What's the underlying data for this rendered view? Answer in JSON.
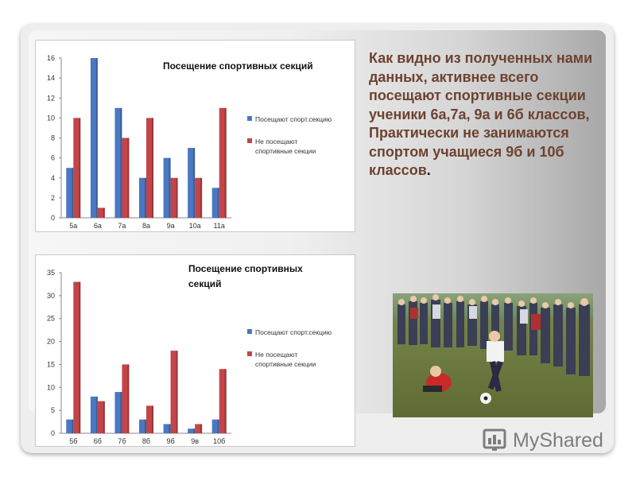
{
  "slide": {
    "description": "Как видно из полученных нами данных, активнее всего посещают спортивные секции ученики 6а,7а, 9а и 6б классов, Практически не занимаются спортом учащиеся 9б и 10б классов",
    "description_end": "."
  },
  "logo": {
    "text": "MyShared",
    "icon": "myshared-logo-icon"
  },
  "photo": {
    "subject": "children playing football photo"
  },
  "colors": {
    "series1": "#4a78c2",
    "series2": "#c3454a",
    "text": "#6e4230"
  },
  "chart_data": [
    {
      "type": "bar",
      "title": "Посещение спортивных секций",
      "categories": [
        "5а",
        "6а",
        "7а",
        "8а",
        "9а",
        "10а",
        "11а"
      ],
      "series": [
        {
          "name": "Посещают спорт.секцию",
          "values": [
            5,
            16,
            11,
            4,
            6,
            7,
            3
          ]
        },
        {
          "name": "Не посещают спортивные секции",
          "values": [
            10,
            1,
            8,
            10,
            4,
            4,
            11
          ]
        }
      ],
      "ylim": [
        0,
        16
      ],
      "yticks": [
        0,
        2,
        4,
        6,
        8,
        10,
        12,
        14,
        16
      ],
      "legend_position": "right",
      "grid": false
    },
    {
      "type": "bar",
      "title": "Посещение спортивных секций",
      "categories": [
        "5б",
        "6б",
        "7б",
        "8б",
        "9б",
        "9в",
        "10б"
      ],
      "series": [
        {
          "name": "Посещают спорт.секцию",
          "values": [
            3,
            8,
            9,
            3,
            2,
            1,
            3
          ]
        },
        {
          "name": "Не посещают спортивные секции",
          "values": [
            33,
            7,
            15,
            6,
            18,
            2,
            14
          ]
        }
      ],
      "ylim": [
        0,
        35
      ],
      "yticks": [
        0,
        5,
        10,
        15,
        20,
        25,
        30,
        35
      ],
      "legend_position": "right",
      "grid": false
    }
  ]
}
